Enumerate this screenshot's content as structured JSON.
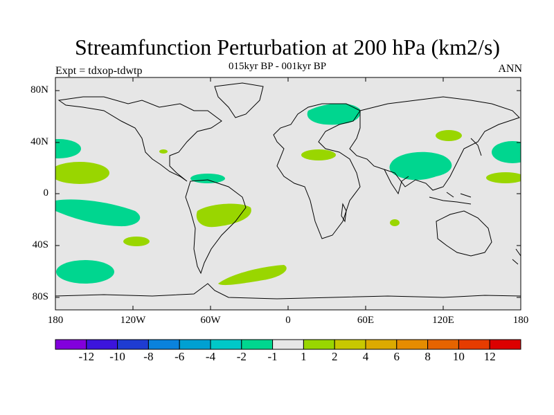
{
  "title": "Streamfunction Perturbation at 200 hPa (km2/s)",
  "subtitle": "015kyr BP - 001kyr BP",
  "left_label": "Expt = tdxop-tdwtp",
  "right_label": "ANN",
  "colors": {
    "background_ocean_land": "#e6e6e6",
    "coastline": "#000000"
  },
  "map": {
    "lat_ticks": [
      "80N",
      "40N",
      "0",
      "40S",
      "80S"
    ],
    "lon_ticks": [
      "180",
      "120W",
      "60W",
      "0",
      "60E",
      "120E",
      "180"
    ],
    "anomalies": [
      {
        "name": "north-pacific-east-neg",
        "level": "-2",
        "color": "#00d68f"
      },
      {
        "name": "pacific-west-pos",
        "level": "1",
        "color": "#99d600"
      },
      {
        "name": "south-pacific-neg",
        "level": "-2",
        "color": "#00d68f"
      },
      {
        "name": "south-pacific-pos-small",
        "level": "1",
        "color": "#99d600"
      },
      {
        "name": "southern-ocean-neg",
        "level": "-2",
        "color": "#00d68f"
      },
      {
        "name": "south-atlantic-pos",
        "level": "1",
        "color": "#99d600"
      },
      {
        "name": "southern-atlantic-pos",
        "level": "1",
        "color": "#99d600"
      },
      {
        "name": "caribbean-neg",
        "level": "-2",
        "color": "#00d68f"
      },
      {
        "name": "north-america-pos-small",
        "level": "1",
        "color": "#99d600"
      },
      {
        "name": "russia-neg",
        "level": "-2",
        "color": "#00d68f"
      },
      {
        "name": "mediterranean-pos",
        "level": "1",
        "color": "#99d600"
      },
      {
        "name": "mongolia-pos",
        "level": "1",
        "color": "#99d600"
      },
      {
        "name": "india-china-neg",
        "level": "-2",
        "color": "#00d68f"
      },
      {
        "name": "west-pacific-neg",
        "level": "-2",
        "color": "#00d68f"
      },
      {
        "name": "west-pacific-pos",
        "level": "1",
        "color": "#99d600"
      },
      {
        "name": "indian-ocean-pos-small",
        "level": "1",
        "color": "#99d600"
      }
    ]
  },
  "colorbar": {
    "labels": [
      "-12",
      "-10",
      "-8",
      "-6",
      "-4",
      "-2",
      "-1",
      "1",
      "2",
      "4",
      "6",
      "8",
      "10",
      "12"
    ],
    "colors": [
      "#8200dc",
      "#3c14dc",
      "#1e3cd2",
      "#0a82dc",
      "#00a0d2",
      "#00c8c8",
      "#00d68f",
      "#e6e6e6",
      "#99d600",
      "#c8c800",
      "#dcaa00",
      "#e68c00",
      "#e66400",
      "#e63c00",
      "#dc0000"
    ]
  }
}
